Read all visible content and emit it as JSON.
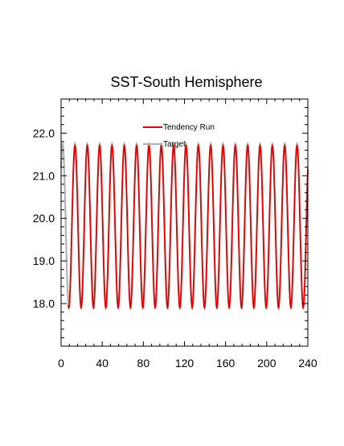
{
  "chart_data": {
    "type": "line",
    "title": "SST-South Hemisphere",
    "xlabel": "",
    "ylabel": "",
    "xlim": [
      0,
      240
    ],
    "ylim": [
      17.0,
      22.8
    ],
    "x_ticks": [
      "0",
      "40",
      "80",
      "120",
      "160",
      "200",
      "240"
    ],
    "x_tick_values": [
      0,
      40,
      80,
      120,
      160,
      200,
      240
    ],
    "y_ticks": [
      "18.0",
      "19.0",
      "20.0",
      "21.0",
      "22.0"
    ],
    "y_tick_values": [
      18.0,
      19.0,
      20.0,
      21.0,
      22.0
    ],
    "grid": false,
    "legend": "top-center",
    "series": [
      {
        "name": "Tendency Run",
        "color": "#e60000",
        "pattern": "sinusoid",
        "x_start": 7,
        "x_end": 240,
        "period": 12,
        "mean": 19.8,
        "amplitude": 1.9,
        "first_peak_x": 13.5
      },
      {
        "name": "Target",
        "color": "#b3b3b3",
        "pattern": "sinusoid",
        "x_start": 0,
        "x_end": 240,
        "period": 12,
        "mean": 19.85,
        "amplitude": 1.9,
        "first_peak_x": 1.5
      }
    ]
  }
}
